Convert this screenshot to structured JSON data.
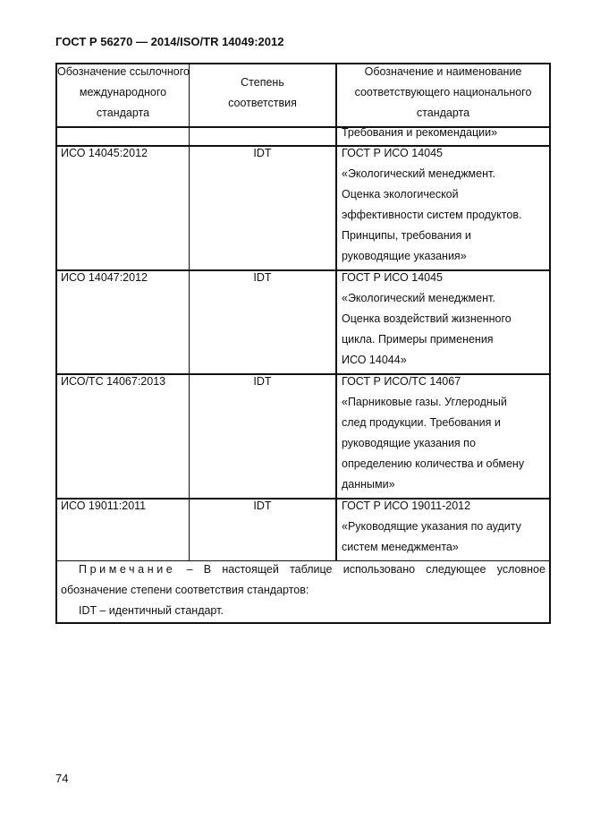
{
  "header": "ГОСТ Р 56270 — 2014/ISO/TR 14049:2012",
  "table": {
    "columns": [
      [
        "Обозначение ссылочного",
        "международного",
        "стандарта"
      ],
      [
        "Степень",
        "соответствия"
      ],
      [
        "Обозначение и наименование",
        "соответствующего национального",
        "стандарта"
      ]
    ],
    "rows": [
      {
        "ref": "",
        "degree": "",
        "national": [
          "Требования и рекомендации»"
        ]
      },
      {
        "ref": "ИСО 14045:2012",
        "degree": "IDT",
        "national": [
          "ГОСТ Р ИСО 14045",
          "«Экологический менеджмент.",
          "Оценка экологической",
          "эффективности систем продуктов.",
          "Принципы, требования и",
          "руководящие указания»"
        ]
      },
      {
        "ref": "ИСО 14047:2012",
        "degree": "IDT",
        "national": [
          "ГОСТ Р ИСО 14045",
          "«Экологический менеджмент.",
          "Оценка воздействий жизненного",
          "цикла. Примеры применения",
          "ИСО 14044»"
        ]
      },
      {
        "ref": "ИСО/ТС 14067:2013",
        "degree": "IDT",
        "national": [
          "ГОСТ Р ИСО/ТС 14067",
          "«Парниковые газы. Углеродный",
          "след продукции. Требования и",
          "руководящие указания по",
          "определению количества и обмену",
          "данными»"
        ]
      },
      {
        "ref": "ИСО 19011:2011",
        "degree": "IDT",
        "national": [
          "ГОСТ Р ИСО 19011-2012",
          "«Руководящие указания по аудиту",
          "систем менеджмента»"
        ]
      }
    ],
    "note": {
      "label": "Примечание",
      "line1_words": [
        "–",
        "В",
        "настоящей",
        "таблице",
        "использовано",
        "следующее",
        "условное"
      ],
      "line2": "обозначение степени соответствия стандартов:",
      "line3": "IDT – идентичный стандарт."
    }
  },
  "page_number": "74"
}
